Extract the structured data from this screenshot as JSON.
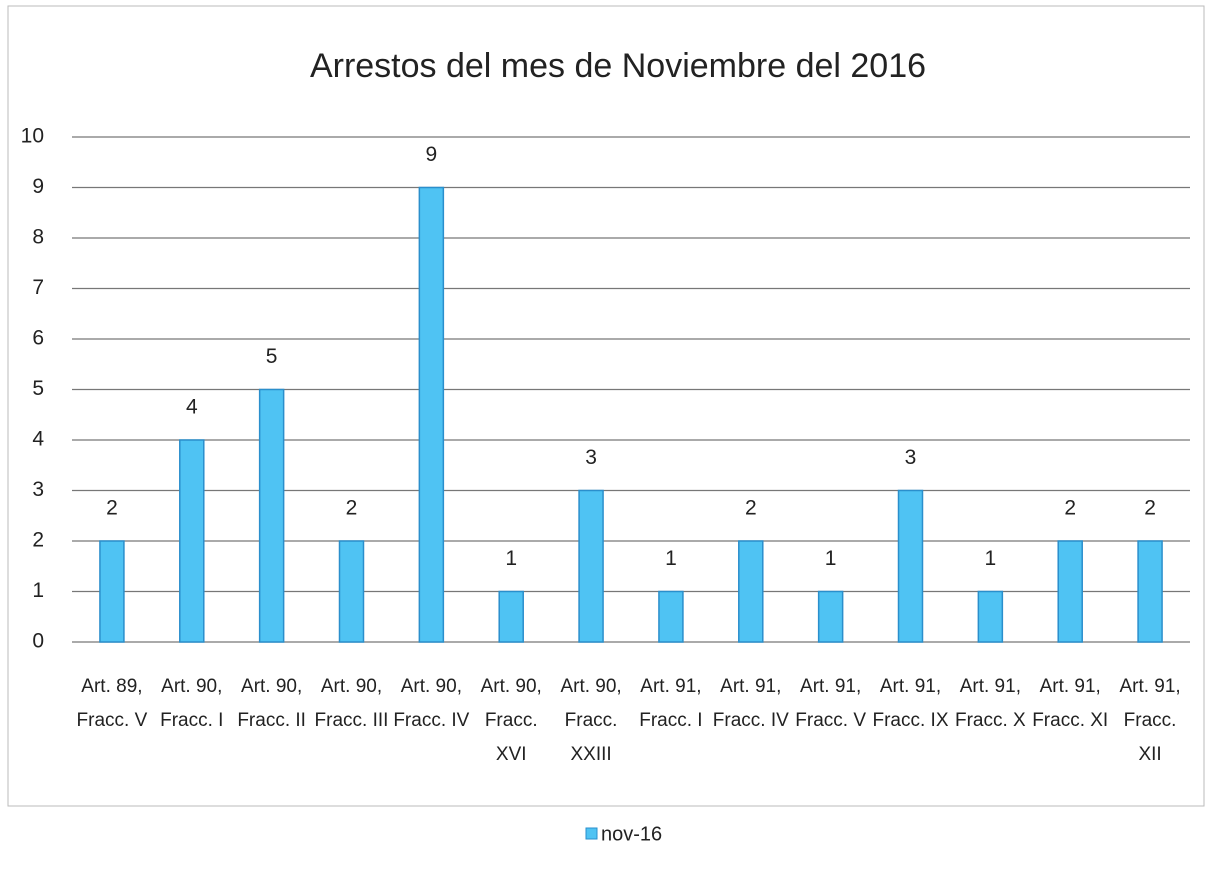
{
  "chart_data": {
    "type": "bar",
    "title": "Arrestos del mes de Noviembre del 2016",
    "categories": [
      "Art. 89, Fracc. V",
      "Art. 90, Fracc. I",
      "Art. 90, Fracc. II",
      "Art. 90, Fracc. III",
      "Art. 90, Fracc. IV",
      "Art. 90, Fracc. XVI",
      "Art. 90, Fracc. XXIII",
      "Art. 91, Fracc. I",
      "Art. 91, Fracc. IV",
      "Art. 91, Fracc. V",
      "Art. 91, Fracc. IX",
      "Art. 91, Fracc. X",
      "Art. 91, Fracc. XI",
      "Art. 91, Fracc. XII"
    ],
    "series": [
      {
        "name": "nov-16",
        "color": "#4fc3f3",
        "values": [
          2,
          4,
          5,
          2,
          9,
          1,
          3,
          1,
          2,
          1,
          3,
          1,
          2,
          2
        ]
      }
    ],
    "ylim": [
      0,
      10
    ],
    "yticks": [
      0,
      1,
      2,
      3,
      4,
      5,
      6,
      7,
      8,
      9,
      10
    ],
    "grid": true,
    "legend": "bottom"
  }
}
